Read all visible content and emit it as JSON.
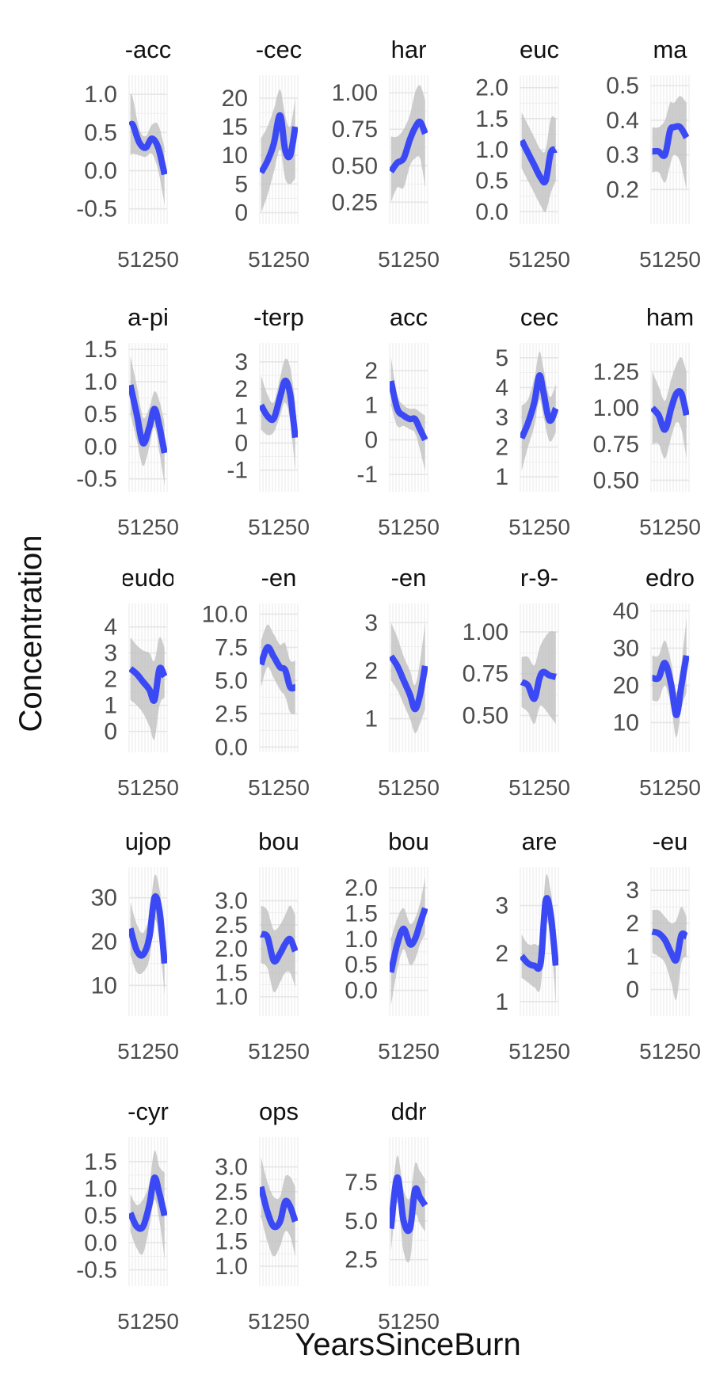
{
  "chart_data": {
    "type": "line",
    "xlabel": "YearsSinceBurn",
    "ylabel": "Concentration",
    "x_tick_labels": [
      "5",
      "10",
      "15",
      "20",
      "25",
      "30"
    ],
    "x_tick_values": [
      5,
      10,
      15,
      20,
      25,
      30
    ],
    "x_tick_rendered_text": "51250",
    "xlim": [
      2,
      32
    ],
    "grid": true,
    "band_color": "#bdbdbd",
    "line_color": "#3b49f5",
    "panels": [
      {
        "title": "-acc",
        "ylim": [
          -0.7,
          1.25
        ],
        "yticks": [
          "1.0",
          "0.5",
          "0.0",
          "-0.5"
        ],
        "ytick_values": [
          1.0,
          0.5,
          0.0,
          -0.5
        ],
        "x": [
          3,
          5,
          10,
          15,
          20,
          25,
          30
        ],
        "y": [
          0.58,
          0.6,
          0.37,
          0.3,
          0.42,
          0.3,
          -0.05
        ],
        "lower": [
          0.2,
          0.22,
          0.2,
          0.18,
          0.22,
          0.0,
          -0.45
        ],
        "upper": [
          1.0,
          0.95,
          0.55,
          0.45,
          0.6,
          0.6,
          0.3
        ]
      },
      {
        "title": "-cec",
        "ylim": [
          -2,
          24
        ],
        "yticks": [
          "20",
          "15",
          "10",
          "5",
          "0"
        ],
        "ytick_values": [
          20,
          15,
          10,
          5,
          0
        ],
        "x": [
          3,
          8,
          13,
          18,
          22,
          26,
          30
        ],
        "y": [
          7,
          9,
          12,
          17,
          11,
          10,
          15
        ],
        "lower": [
          0,
          3,
          7,
          11,
          6,
          5,
          6
        ],
        "upper": [
          13,
          15,
          18,
          21.5,
          17,
          15,
          20
        ]
      },
      {
        "title": "har",
        "ylim": [
          0.1,
          1.12
        ],
        "yticks": [
          "1.00",
          "0.75",
          "0.50",
          "0.25"
        ],
        "ytick_values": [
          1.0,
          0.75,
          0.5,
          0.25
        ],
        "x": [
          3,
          8,
          13,
          18,
          22,
          26,
          30
        ],
        "y": [
          0.46,
          0.52,
          0.55,
          0.68,
          0.76,
          0.8,
          0.72
        ],
        "lower": [
          0.25,
          0.35,
          0.35,
          0.5,
          0.55,
          0.55,
          0.35
        ],
        "upper": [
          0.7,
          0.7,
          0.75,
          0.85,
          1.0,
          1.05,
          0.95
        ]
      },
      {
        "title": "euc",
        "ylim": [
          -0.2,
          2.2
        ],
        "yticks": [
          "2.0",
          "1.5",
          "1.0",
          "0.5",
          "0.0"
        ],
        "ytick_values": [
          2.0,
          1.5,
          1.0,
          0.5,
          0.0
        ],
        "x": [
          3,
          8,
          13,
          18,
          22,
          26,
          30
        ],
        "y": [
          1.15,
          0.95,
          0.75,
          0.55,
          0.5,
          0.95,
          1.0
        ],
        "lower": [
          0.7,
          0.5,
          0.3,
          0.1,
          0.0,
          0.3,
          0.5
        ],
        "upper": [
          1.6,
          1.4,
          1.2,
          1.0,
          1.0,
          1.5,
          1.5
        ]
      },
      {
        "title": "ma",
        "ylim": [
          0.1,
          0.53
        ],
        "yticks": [
          "0.5",
          "0.4",
          "0.3",
          "0.2"
        ],
        "ytick_values": [
          0.5,
          0.4,
          0.3,
          0.2
        ],
        "x": [
          3,
          8,
          13,
          17,
          20,
          25,
          30
        ],
        "y": [
          0.31,
          0.31,
          0.3,
          0.37,
          0.38,
          0.38,
          0.35
        ],
        "lower": [
          0.25,
          0.25,
          0.22,
          0.27,
          0.3,
          0.28,
          0.2
        ],
        "upper": [
          0.38,
          0.38,
          0.4,
          0.45,
          0.45,
          0.47,
          0.45
        ]
      },
      {
        "title": "a-pi",
        "ylim": [
          -0.7,
          1.6
        ],
        "yticks": [
          "1.5",
          "1.0",
          "0.5",
          "0.0",
          "-0.5"
        ],
        "ytick_values": [
          1.5,
          1.0,
          0.5,
          0.0,
          -0.5
        ],
        "x": [
          3,
          8,
          13,
          18,
          22,
          26,
          30
        ],
        "y": [
          0.95,
          0.5,
          0.05,
          0.3,
          0.58,
          0.3,
          -0.1
        ],
        "lower": [
          0.5,
          0.1,
          -0.3,
          0.0,
          0.3,
          -0.1,
          -0.6
        ],
        "upper": [
          1.4,
          0.95,
          0.45,
          0.6,
          0.85,
          0.7,
          0.35
        ]
      },
      {
        "title": "-terp",
        "ylim": [
          -1.8,
          3.7
        ],
        "yticks": [
          "3",
          "2",
          "1",
          "0",
          "-1"
        ],
        "ytick_values": [
          3,
          2,
          1,
          0,
          -1
        ],
        "x": [
          3,
          8,
          13,
          18,
          22,
          26,
          30
        ],
        "y": [
          1.4,
          1.0,
          0.9,
          1.7,
          2.3,
          1.8,
          0.2
        ],
        "lower": [
          0.5,
          0.3,
          0.4,
          1.0,
          1.5,
          0.8,
          -1.0
        ],
        "upper": [
          2.5,
          1.8,
          1.5,
          2.4,
          3.1,
          2.8,
          1.5
        ]
      },
      {
        "title": "acc",
        "ylim": [
          -1.5,
          2.8
        ],
        "yticks": [
          "2",
          "1",
          "0",
          "-1"
        ],
        "ytick_values": [
          2,
          1,
          0,
          -1
        ],
        "x": [
          3,
          8,
          13,
          18,
          22,
          26,
          30
        ],
        "y": [
          1.7,
          0.9,
          0.7,
          0.6,
          0.6,
          0.3,
          0.0
        ],
        "lower": [
          1.0,
          0.4,
          0.4,
          0.3,
          0.2,
          -0.3,
          -0.9
        ],
        "upper": [
          2.4,
          1.3,
          1.0,
          0.9,
          0.9,
          0.8,
          0.7
        ]
      },
      {
        "title": "cec",
        "ylim": [
          0.5,
          5.5
        ],
        "yticks": [
          "5",
          "4",
          "3",
          "2",
          "1"
        ],
        "ytick_values": [
          5,
          4,
          3,
          2,
          1
        ],
        "x": [
          3,
          8,
          13,
          17,
          20,
          25,
          30
        ],
        "y": [
          2.3,
          2.8,
          3.5,
          4.4,
          3.9,
          2.9,
          3.3
        ],
        "lower": [
          1.2,
          2.0,
          2.7,
          3.6,
          3.1,
          2.2,
          2.5
        ],
        "upper": [
          3.4,
          3.6,
          4.3,
          5.2,
          4.7,
          3.7,
          4.1
        ]
      },
      {
        "title": "ham",
        "ylim": [
          0.42,
          1.45
        ],
        "yticks": [
          "1.25",
          "1.00",
          "0.75",
          "0.50"
        ],
        "ytick_values": [
          1.25,
          1.0,
          0.75,
          0.5
        ],
        "x": [
          3,
          8,
          13,
          18,
          22,
          26,
          30
        ],
        "y": [
          1.0,
          0.95,
          0.85,
          1.0,
          1.1,
          1.1,
          0.95
        ],
        "lower": [
          0.75,
          0.75,
          0.65,
          0.8,
          0.9,
          0.85,
          0.65
        ],
        "upper": [
          1.25,
          1.15,
          1.05,
          1.2,
          1.3,
          1.35,
          1.25
        ]
      },
      {
        "title": "eudo",
        "ylim": [
          -0.8,
          4.9
        ],
        "yticks": [
          "4",
          "3",
          "2",
          "1",
          "0"
        ],
        "ytick_values": [
          4,
          3,
          2,
          1,
          0
        ],
        "x": [
          3,
          8,
          13,
          18,
          22,
          26,
          30
        ],
        "y": [
          2.4,
          2.2,
          1.9,
          1.6,
          1.2,
          2.4,
          2.1
        ],
        "lower": [
          1.2,
          1.0,
          0.7,
          0.2,
          -0.3,
          1.0,
          1.3
        ],
        "upper": [
          3.6,
          3.3,
          3.1,
          3.0,
          2.7,
          3.6,
          3.2
        ]
      },
      {
        "title": "-en",
        "ylim": [
          -0.4,
          10.8
        ],
        "yticks": [
          "10.0",
          "7.5",
          "5.0",
          "2.5",
          "0.0"
        ],
        "ytick_values": [
          10,
          7.5,
          5,
          2.5,
          0
        ],
        "x": [
          3,
          8,
          13,
          18,
          22,
          26,
          30
        ],
        "y": [
          6.2,
          7.5,
          6.8,
          6.0,
          5.8,
          4.5,
          4.5
        ],
        "lower": [
          4.5,
          6.0,
          5.2,
          4.3,
          3.8,
          2.6,
          2.5
        ],
        "upper": [
          8.0,
          9.2,
          8.5,
          7.7,
          7.8,
          6.5,
          6.5
        ]
      },
      {
        "title": "-en",
        "ylim": [
          0.3,
          3.4
        ],
        "yticks": [
          "3",
          "2",
          "1"
        ],
        "ytick_values": [
          3,
          2,
          1
        ],
        "x": [
          3,
          8,
          13,
          18,
          22,
          26,
          30
        ],
        "y": [
          2.3,
          2.1,
          1.8,
          1.5,
          1.2,
          1.5,
          2.1
        ],
        "lower": [
          1.8,
          1.6,
          1.3,
          1.0,
          0.7,
          0.9,
          1.2
        ],
        "upper": [
          3.0,
          2.7,
          2.3,
          2.0,
          1.7,
          2.2,
          3.0
        ]
      },
      {
        "title": "r-9-",
        "ylim": [
          0.28,
          1.17
        ],
        "yticks": [
          "1.00",
          "0.75",
          "0.50"
        ],
        "ytick_values": [
          1.0,
          0.75,
          0.5
        ],
        "x": [
          3,
          8,
          13,
          17,
          20,
          25,
          30
        ],
        "y": [
          0.7,
          0.68,
          0.6,
          0.72,
          0.76,
          0.74,
          0.73
        ],
        "lower": [
          0.55,
          0.52,
          0.45,
          0.55,
          0.55,
          0.5,
          0.45
        ],
        "upper": [
          0.85,
          0.85,
          0.8,
          0.9,
          0.95,
          1.0,
          1.0
        ]
      },
      {
        "title": "edro",
        "ylim": [
          2,
          42
        ],
        "yticks": [
          "40",
          "30",
          "20",
          "10"
        ],
        "ytick_values": [
          40,
          30,
          20,
          10
        ],
        "x": [
          3,
          8,
          13,
          18,
          22,
          26,
          30
        ],
        "y": [
          22,
          22,
          26,
          20,
          12,
          20,
          28
        ],
        "lower": [
          16,
          16,
          20,
          14,
          6,
          14,
          18
        ],
        "upper": [
          28,
          28,
          32,
          26,
          18,
          26,
          38
        ]
      },
      {
        "title": "ujop",
        "ylim": [
          3,
          37
        ],
        "yticks": [
          "30",
          "20",
          "10"
        ],
        "ytick_values": [
          30,
          20,
          10
        ],
        "x": [
          3,
          8,
          13,
          18,
          22,
          26,
          30
        ],
        "y": [
          23,
          18,
          17,
          21,
          30,
          27,
          15
        ],
        "lower": [
          17,
          13,
          13,
          16,
          25,
          20,
          8
        ],
        "upper": [
          29,
          24,
          22,
          26,
          35,
          32,
          22
        ]
      },
      {
        "title": "bou",
        "ylim": [
          0.6,
          3.7
        ],
        "yticks": [
          "3.0",
          "2.5",
          "2.0",
          "1.5",
          "1.0"
        ],
        "ytick_values": [
          3.0,
          2.5,
          2.0,
          1.5,
          1.0
        ],
        "x": [
          3,
          8,
          13,
          18,
          22,
          26,
          30
        ],
        "y": [
          2.3,
          2.25,
          1.75,
          1.9,
          2.1,
          2.2,
          1.95
        ],
        "lower": [
          1.7,
          1.6,
          1.1,
          1.3,
          1.5,
          1.5,
          1.2
        ],
        "upper": [
          2.9,
          2.8,
          2.4,
          2.5,
          2.7,
          2.9,
          2.7
        ]
      },
      {
        "title": "bou",
        "ylim": [
          -0.5,
          2.4
        ],
        "yticks": [
          "2.0",
          "1.5",
          "1.0",
          "0.5",
          "0.0"
        ],
        "ytick_values": [
          2.0,
          1.5,
          1.0,
          0.5,
          0.0
        ],
        "x": [
          3,
          8,
          13,
          18,
          22,
          26,
          30
        ],
        "y": [
          0.35,
          0.9,
          1.2,
          0.9,
          1.0,
          1.3,
          1.6
        ],
        "lower": [
          -0.3,
          0.4,
          0.8,
          0.5,
          0.6,
          0.9,
          1.1
        ],
        "upper": [
          1.0,
          1.4,
          1.6,
          1.3,
          1.4,
          1.7,
          2.2
        ]
      },
      {
        "title": "are",
        "ylim": [
          0.7,
          3.8
        ],
        "yticks": [
          "3",
          "2",
          "1"
        ],
        "ytick_values": [
          3,
          2,
          1
        ],
        "x": [
          3,
          8,
          13,
          18,
          22,
          26,
          30
        ],
        "y": [
          1.95,
          1.8,
          1.75,
          1.8,
          3.1,
          2.8,
          1.75
        ],
        "lower": [
          1.5,
          1.4,
          1.3,
          1.3,
          2.6,
          2.3,
          1.0
        ],
        "upper": [
          2.4,
          2.2,
          2.2,
          2.3,
          3.6,
          3.3,
          2.5
        ]
      },
      {
        "title": "-eu",
        "ylim": [
          -0.8,
          3.7
        ],
        "yticks": [
          "3",
          "2",
          "1",
          "0"
        ],
        "ytick_values": [
          3,
          2,
          1,
          0
        ],
        "x": [
          3,
          8,
          13,
          18,
          22,
          26,
          30
        ],
        "y": [
          1.75,
          1.7,
          1.5,
          1.1,
          0.9,
          1.65,
          1.6
        ],
        "lower": [
          1.1,
          1.0,
          0.8,
          0.2,
          -0.3,
          0.8,
          1.0
        ],
        "upper": [
          2.4,
          2.4,
          2.2,
          2.0,
          2.1,
          2.5,
          2.2
        ]
      },
      {
        "title": "-cyr",
        "ylim": [
          -0.8,
          1.95
        ],
        "yticks": [
          "1.5",
          "1.0",
          "0.5",
          "0.0",
          "-0.5"
        ],
        "ytick_values": [
          1.5,
          1.0,
          0.5,
          0.0,
          -0.5
        ],
        "x": [
          3,
          8,
          13,
          18,
          22,
          26,
          30
        ],
        "y": [
          0.55,
          0.3,
          0.3,
          0.7,
          1.2,
          0.9,
          0.5
        ],
        "lower": [
          0.2,
          -0.1,
          -0.2,
          0.3,
          0.8,
          0.4,
          -0.3
        ],
        "upper": [
          0.9,
          0.7,
          0.8,
          1.1,
          1.7,
          1.4,
          1.3
        ]
      },
      {
        "title": "ops",
        "ylim": [
          0.6,
          3.6
        ],
        "yticks": [
          "3.0",
          "2.5",
          "2.0",
          "1.5",
          "1.0"
        ],
        "ytick_values": [
          3.0,
          2.5,
          2.0,
          1.5,
          1.0
        ],
        "x": [
          3,
          8,
          13,
          18,
          22,
          26,
          30
        ],
        "y": [
          2.6,
          2.1,
          1.8,
          1.9,
          2.3,
          2.2,
          1.9
        ],
        "lower": [
          2.0,
          1.5,
          1.2,
          1.4,
          1.7,
          1.6,
          1.2
        ],
        "upper": [
          3.2,
          2.7,
          2.4,
          2.4,
          2.8,
          2.8,
          2.6
        ]
      },
      {
        "title": "ddr",
        "ylim": [
          0.8,
          10.4
        ],
        "yticks": [
          "7.5",
          "5.0",
          "2.5"
        ],
        "ytick_values": [
          7.5,
          5.0,
          2.5
        ],
        "x": [
          3,
          8,
          13,
          18,
          22,
          26,
          30
        ],
        "y": [
          4.5,
          7.8,
          5.0,
          4.5,
          7.0,
          6.5,
          6.0
        ],
        "lower": [
          3.0,
          6.2,
          3.0,
          2.5,
          5.3,
          4.8,
          4.3
        ],
        "upper": [
          6.0,
          9.2,
          7.0,
          6.5,
          8.7,
          8.2,
          7.7
        ]
      }
    ]
  }
}
